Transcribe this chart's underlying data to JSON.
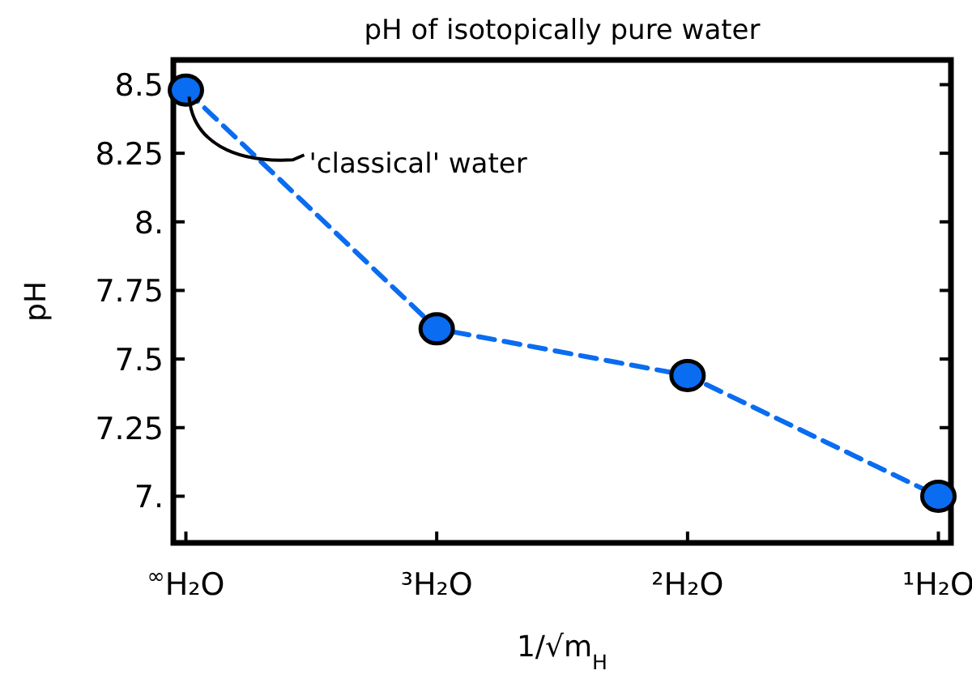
{
  "chart_data": {
    "type": "line",
    "title": "pH of isotopically pure water",
    "xlabel": "1/√m$_{H}$",
    "ylabel": "pH",
    "categories": [
      "$^{∞}$H₂O",
      "³H₂O",
      "²H₂O",
      "¹H₂O"
    ],
    "series": [
      {
        "color": "#0a6cf0",
        "values": [
          8.48,
          7.61,
          7.44,
          7.0
        ]
      }
    ],
    "marker": "circle",
    "line_style": "dashed",
    "ylim": [
      6.83,
      8.59
    ],
    "yticks": [
      {
        "value": 7,
        "label": "7."
      },
      7.25,
      7.5,
      7.75,
      {
        "value": 8,
        "label": "8."
      },
      8.25,
      8.5
    ],
    "annotations": [
      {
        "text": "'classical' water",
        "x": "$^{∞}$H₂O",
        "y": 8.48
      }
    ]
  }
}
